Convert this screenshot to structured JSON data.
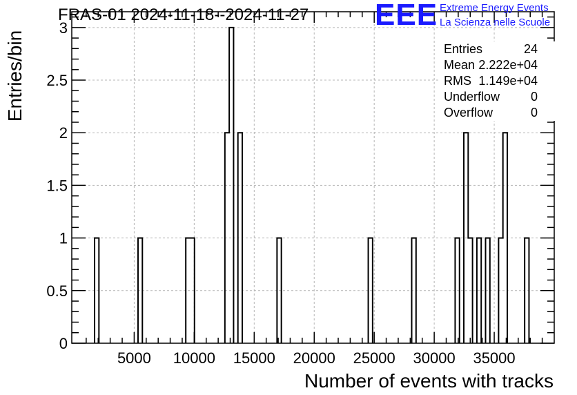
{
  "title": "FRAS-01 2024-11-18--2024-11-27",
  "logo": {
    "mark": "EEE",
    "line1": "Extreme Energy Events",
    "line2": "La Scienza nelle Scuole"
  },
  "stats": [
    {
      "label": "Entries",
      "value": "24"
    },
    {
      "label": "Mean",
      "value": "2.222e+04"
    },
    {
      "label": "RMS",
      "value": "1.149e+04"
    },
    {
      "label": "Underflow",
      "value": "0"
    },
    {
      "label": "Overflow",
      "value": "0"
    }
  ],
  "colors": {
    "line": "#000000",
    "grid": "#b4b4b4",
    "logo": "#1a1aff"
  },
  "chart_data": {
    "type": "histogram",
    "title": "FRAS-01 2024-11-18--2024-11-27",
    "xlabel": "Number of events with tracks",
    "ylabel": "Entries/bin",
    "xlim": [
      -200,
      40000
    ],
    "ylim": [
      0,
      3.15
    ],
    "bin_width": 362,
    "grid": true,
    "legend": "top-right stats box",
    "xticks": [
      5000,
      10000,
      15000,
      20000,
      25000,
      30000,
      35000
    ],
    "xtick_labels": [
      "5000",
      "10000",
      "15000",
      "20000",
      "25000",
      "30000",
      "35000"
    ],
    "yticks": [
      0,
      0.5,
      1,
      1.5,
      2,
      2.5,
      3
    ],
    "ytick_labels": [
      "0",
      "0.5",
      "1",
      "1.5",
      "2",
      "2.5",
      "3"
    ],
    "bins": [
      {
        "x_start": 1700,
        "count": 1
      },
      {
        "x_start": 5320,
        "count": 1
      },
      {
        "x_start": 9300,
        "count": 1
      },
      {
        "x_start": 9662,
        "count": 1
      },
      {
        "x_start": 12558,
        "count": 2
      },
      {
        "x_start": 12920,
        "count": 3
      },
      {
        "x_start": 13644,
        "count": 2
      },
      {
        "x_start": 16902,
        "count": 1
      },
      {
        "x_start": 24504,
        "count": 1
      },
      {
        "x_start": 28124,
        "count": 1
      },
      {
        "x_start": 31744,
        "count": 1
      },
      {
        "x_start": 32468,
        "count": 2
      },
      {
        "x_start": 32830,
        "count": 1
      },
      {
        "x_start": 33554,
        "count": 1
      },
      {
        "x_start": 34278,
        "count": 1
      },
      {
        "x_start": 35364,
        "count": 1
      },
      {
        "x_start": 35726,
        "count": 2
      },
      {
        "x_start": 37536,
        "count": 1
      }
    ]
  }
}
